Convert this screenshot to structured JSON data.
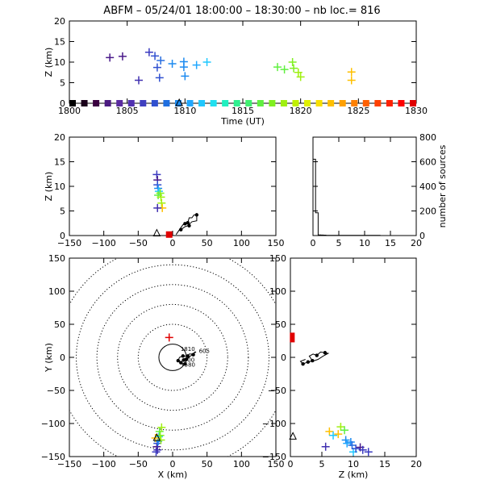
{
  "title": "ABFM – 05/24/01 18:00:00 – 18:30:00 – nb loc.=    816",
  "colors": {
    "axis": "#000000",
    "time_bar": [
      "#000000",
      "#1a001a",
      "#3a0040",
      "#4b1a80",
      "#5a2aa0",
      "#5030b0",
      "#4040c0",
      "#3050d0",
      "#1f6fe0",
      "#1c8af0",
      "#20a8ff",
      "#20c8ff",
      "#20e0f0",
      "#20f0c0",
      "#30f090",
      "#40f070",
      "#60f040",
      "#80f020",
      "#a0f010",
      "#c0f000",
      "#e0f000",
      "#f8e000",
      "#ffc000",
      "#ffa000",
      "#ff8000",
      "#ff6000",
      "#ff4000",
      "#ff2000",
      "#ff0000",
      "#e00000"
    ]
  },
  "chart_data": [
    {
      "panel": "time-height",
      "type": "scatter",
      "title": "ABFM – 05/24/01 18:00:00 – 18:30:00 – nb loc.=    816",
      "xlabel": "Time (UT)",
      "ylabel": "Z (km)",
      "xlim": [
        1800,
        1830
      ],
      "ylim": [
        0,
        20
      ],
      "xticks": [
        "1800",
        "1805",
        "1810",
        "1815",
        "1820",
        "1825",
        "1830"
      ],
      "yticks": [
        "0",
        "5",
        "10",
        "15",
        "20"
      ],
      "points": [
        {
          "x": 1803.5,
          "y": 11.1,
          "c": "#4a1a8a"
        },
        {
          "x": 1804.6,
          "y": 11.4,
          "c": "#4a1a8a"
        },
        {
          "x": 1806.0,
          "y": 5.6,
          "c": "#4030b0"
        },
        {
          "x": 1806.9,
          "y": 12.4,
          "c": "#3a3ac0"
        },
        {
          "x": 1807.4,
          "y": 11.5,
          "c": "#3050d0"
        },
        {
          "x": 1807.6,
          "y": 8.7,
          "c": "#3050d0"
        },
        {
          "x": 1807.8,
          "y": 6.2,
          "c": "#3050d0"
        },
        {
          "x": 1807.9,
          "y": 10.4,
          "c": "#2a6ee0"
        },
        {
          "x": 1808.9,
          "y": 9.6,
          "c": "#1c8af0"
        },
        {
          "x": 1809.9,
          "y": 10.1,
          "c": "#1c8af0"
        },
        {
          "x": 1809.9,
          "y": 8.8,
          "c": "#1c8af0"
        },
        {
          "x": 1810.0,
          "y": 6.6,
          "c": "#1c8af0"
        },
        {
          "x": 1811.0,
          "y": 9.3,
          "c": "#20a8ff"
        },
        {
          "x": 1811.9,
          "y": 10.0,
          "c": "#20c8ff"
        },
        {
          "x": 1818.0,
          "y": 8.8,
          "c": "#60f040"
        },
        {
          "x": 1818.6,
          "y": 8.2,
          "c": "#60f040"
        },
        {
          "x": 1819.3,
          "y": 10.0,
          "c": "#80f020"
        },
        {
          "x": 1819.4,
          "y": 8.5,
          "c": "#80f020"
        },
        {
          "x": 1819.8,
          "y": 7.5,
          "c": "#a0f010"
        },
        {
          "x": 1820.0,
          "y": 6.4,
          "c": "#a0f010"
        },
        {
          "x": 1824.4,
          "y": 7.6,
          "c": "#ffc000"
        },
        {
          "x": 1824.4,
          "y": 5.6,
          "c": "#ffc000"
        }
      ],
      "triangle": {
        "x": 1809.5,
        "y": 0
      },
      "time_squares": 30
    },
    {
      "panel": "x-z",
      "type": "scatter",
      "xlabel": "",
      "ylabel": "Z (km)",
      "xlim": [
        -150,
        150
      ],
      "ylim": [
        0,
        20
      ],
      "xticks": [
        "−150",
        "−100",
        "−50",
        "0",
        "50",
        "100",
        "150"
      ],
      "yticks": [
        "0",
        "5",
        "10",
        "15",
        "20"
      ],
      "points": [
        {
          "x": -23,
          "y": 12.4,
          "c": "#3a3ac0"
        },
        {
          "x": -22,
          "y": 11.3,
          "c": "#4a1a8a"
        },
        {
          "x": -22,
          "y": 10.3,
          "c": "#3050d0"
        },
        {
          "x": -21,
          "y": 9.6,
          "c": "#1c8af0"
        },
        {
          "x": -20,
          "y": 9.0,
          "c": "#20c8ff"
        },
        {
          "x": -21,
          "y": 8.2,
          "c": "#60f040"
        },
        {
          "x": -18,
          "y": 8.6,
          "c": "#80f020"
        },
        {
          "x": -17,
          "y": 7.8,
          "c": "#a0f010"
        },
        {
          "x": -16,
          "y": 6.6,
          "c": "#a0f010"
        },
        {
          "x": -15,
          "y": 5.6,
          "c": "#ffc000"
        },
        {
          "x": -22,
          "y": 5.6,
          "c": "#4030b0"
        }
      ],
      "track": [
        [
          5,
          0.2
        ],
        [
          10,
          1.2
        ],
        [
          15,
          2.2
        ],
        [
          19,
          2.4
        ],
        [
          22,
          2.6
        ],
        [
          24,
          3.6
        ],
        [
          28,
          3.6
        ],
        [
          31,
          4.2
        ],
        [
          35,
          4.2
        ],
        [
          35,
          3.0
        ],
        [
          28,
          2.8
        ],
        [
          22,
          2.0
        ],
        [
          18,
          1.8
        ],
        [
          12,
          1.2
        ]
      ],
      "track_dots": [
        [
          12,
          1.2
        ],
        [
          22,
          2.6
        ],
        [
          35,
          4.2
        ],
        [
          18,
          2.4
        ],
        [
          24,
          2.0
        ]
      ],
      "triangle": {
        "x": -23,
        "y": 0.4
      },
      "red_mark": {
        "x": -5,
        "y": 0.2
      }
    },
    {
      "panel": "altitude-histogram",
      "type": "bar",
      "xlabel": "",
      "ylabel": "number of sources",
      "xlim": [
        0,
        20
      ],
      "ylim": [
        0,
        800
      ],
      "xticks": [
        "0",
        "5",
        "10",
        "15",
        "20"
      ],
      "yticks": [
        "0",
        "200",
        "400",
        "600",
        "800"
      ],
      "bins": [
        0,
        0.5,
        1,
        1.5,
        2,
        2.5,
        3,
        3.5,
        4,
        4.5,
        5,
        5.5,
        6,
        6.5,
        7,
        7.5,
        8,
        8.5,
        9,
        9.5,
        10,
        10.5,
        11,
        11.5,
        12,
        12.5,
        13,
        13.5,
        14,
        14.5,
        15,
        15.5,
        16,
        16.5,
        17,
        17.5,
        18,
        18.5,
        19,
        19.5
      ],
      "values": [
        620,
        185,
        5,
        4,
        3,
        2,
        2,
        1,
        1,
        1,
        2,
        2,
        2,
        1,
        1,
        1,
        1,
        1,
        1,
        1,
        1,
        1,
        1,
        1,
        1,
        1,
        0,
        0,
        0,
        0,
        0,
        0,
        0,
        0,
        0,
        0,
        0,
        0,
        0,
        0
      ]
    },
    {
      "panel": "x-y-plan",
      "type": "scatter",
      "xlabel": "X (km)",
      "ylabel": "Y (km)",
      "xlim": [
        -150,
        150
      ],
      "ylim": [
        -150,
        150
      ],
      "xticks": [
        "−150",
        "−100",
        "−50",
        "0",
        "50",
        "100",
        "150"
      ],
      "yticks": [
        "−150",
        "−100",
        "−50",
        "0",
        "50",
        "100",
        "150"
      ],
      "range_rings": [
        20,
        50,
        80,
        110,
        140,
        170
      ],
      "points": [
        {
          "x": -24,
          "y": -143,
          "c": "#3a3ac0"
        },
        {
          "x": -23,
          "y": -135,
          "c": "#4a1a8a"
        },
        {
          "x": -22,
          "y": -130,
          "c": "#3050d0"
        },
        {
          "x": -21,
          "y": -127,
          "c": "#1c8af0"
        },
        {
          "x": -20,
          "y": -120,
          "c": "#20c8ff"
        },
        {
          "x": -19,
          "y": -112,
          "c": "#60f040"
        },
        {
          "x": -18,
          "y": -118,
          "c": "#80f020"
        },
        {
          "x": -17,
          "y": -125,
          "c": "#a0f010"
        },
        {
          "x": -16,
          "y": -106,
          "c": "#a0f010"
        },
        {
          "x": -22,
          "y": -140,
          "c": "#4030b0"
        },
        {
          "x": -25,
          "y": -122,
          "c": "#ffc000"
        }
      ],
      "track": [
        [
          8,
          -5
        ],
        [
          10,
          0
        ],
        [
          15,
          2
        ],
        [
          22,
          2
        ],
        [
          24,
          5
        ],
        [
          28,
          5
        ],
        [
          30,
          4
        ],
        [
          32,
          8
        ],
        [
          34,
          8
        ],
        [
          30,
          6
        ],
        [
          26,
          2
        ],
        [
          20,
          -3
        ],
        [
          16,
          -4
        ],
        [
          12,
          -8
        ],
        [
          18,
          -10
        ],
        [
          15,
          -12
        ],
        [
          12,
          -6
        ]
      ],
      "track_dots": [
        [
          8,
          -5
        ],
        [
          15,
          2
        ],
        [
          22,
          2
        ],
        [
          30,
          4
        ],
        [
          20,
          -3
        ],
        [
          16,
          -4
        ],
        [
          12,
          -8
        ],
        [
          18,
          -10
        ]
      ],
      "labels": [
        {
          "text": "1810",
          "x": 22,
          "y": 10
        },
        {
          "text": "605",
          "x": 46,
          "y": 7
        },
        {
          "text": "800",
          "x": 24,
          "y": -7
        },
        {
          "text": "580",
          "x": 25,
          "y": -14
        }
      ],
      "triangle": {
        "x": -23,
        "y": -122
      },
      "red_mark": {
        "x": -5,
        "y": 30
      }
    },
    {
      "panel": "z-y",
      "type": "scatter",
      "xlabel": "Z (km)",
      "ylabel": "",
      "xlim": [
        0,
        20
      ],
      "ylim": [
        -150,
        150
      ],
      "xticks": [
        "0",
        "5",
        "10",
        "15",
        "20"
      ],
      "yticks": [
        "−150",
        "−100",
        "−50",
        "0",
        "50",
        "100",
        "150"
      ],
      "points": [
        {
          "x": 5.6,
          "y": -135,
          "c": "#4030b0"
        },
        {
          "x": 6.2,
          "y": -112,
          "c": "#ffc000"
        },
        {
          "x": 6.8,
          "y": -118,
          "c": "#20c8ff"
        },
        {
          "x": 7.6,
          "y": -116,
          "c": "#ffc000"
        },
        {
          "x": 8.0,
          "y": -105,
          "c": "#a0f010"
        },
        {
          "x": 8.6,
          "y": -110,
          "c": "#60f040"
        },
        {
          "x": 8.8,
          "y": -125,
          "c": "#1c8af0"
        },
        {
          "x": 9.0,
          "y": -130,
          "c": "#20a8ff"
        },
        {
          "x": 9.6,
          "y": -128,
          "c": "#1c8af0"
        },
        {
          "x": 9.8,
          "y": -133,
          "c": "#2a6ee0"
        },
        {
          "x": 10.0,
          "y": -143,
          "c": "#20c8ff"
        },
        {
          "x": 10.4,
          "y": -138,
          "c": "#3050d0"
        },
        {
          "x": 11.1,
          "y": -136,
          "c": "#4a1a8a"
        },
        {
          "x": 11.5,
          "y": -140,
          "c": "#3a3ac0"
        },
        {
          "x": 12.4,
          "y": -143,
          "c": "#3a3ac0"
        }
      ],
      "track": [
        [
          3.5,
          -5
        ],
        [
          3.0,
          2
        ],
        [
          3.6,
          5
        ],
        [
          4.2,
          3
        ],
        [
          4.8,
          8
        ],
        [
          5.5,
          7
        ],
        [
          6,
          6
        ],
        [
          5.2,
          2
        ],
        [
          4.4,
          -3
        ],
        [
          3.8,
          -5
        ],
        [
          2.8,
          -7
        ],
        [
          2.0,
          -10
        ],
        [
          1.6,
          -6
        ],
        [
          2.4,
          -3
        ]
      ],
      "track_dots": [
        [
          3.5,
          -5
        ],
        [
          4.2,
          3
        ],
        [
          5.5,
          7
        ],
        [
          2.8,
          -7
        ],
        [
          2.0,
          -10
        ]
      ],
      "triangle": {
        "x": 0.4,
        "y": -120
      },
      "red_mark": {
        "x": 0.3,
        "y": 30
      }
    }
  ]
}
